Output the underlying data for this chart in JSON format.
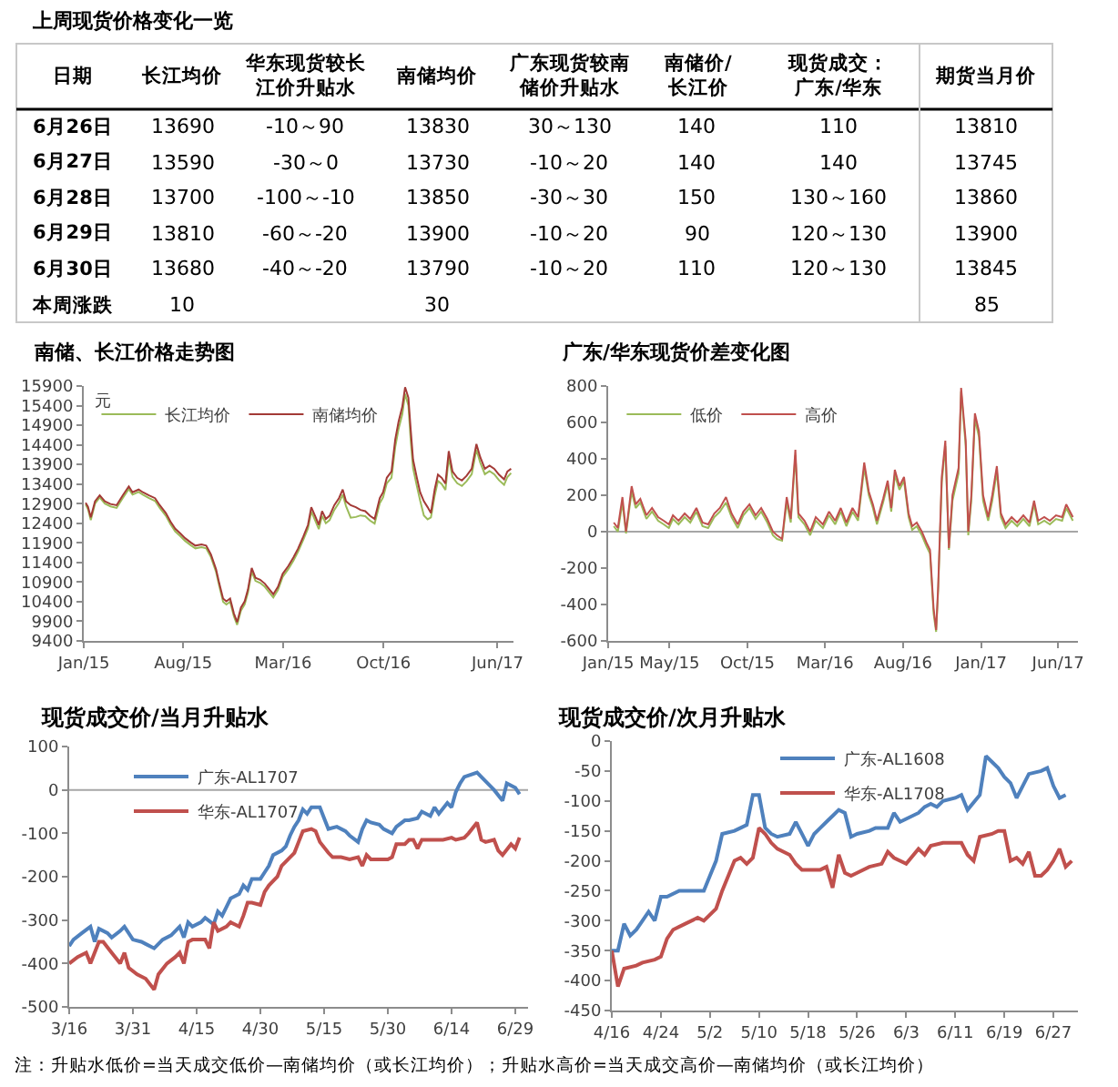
{
  "chart_data": [
    {
      "type": "other",
      "title": "上周现货价格变化一览",
      "categories": [
        "日期",
        "长江均价",
        "华东现货较长江价升贴水",
        "南储均价",
        "广东现货较南储价升贴水",
        "南储价/长江价",
        "现货成交：广东/华东",
        "期货当月价"
      ],
      "y_categories": [
        "6月26日",
        "6月27日",
        "6月28日",
        "6月29日",
        "6月30日",
        "本周涨跌"
      ],
      "cell_labels": [
        [
          "13690",
          "-10～90",
          "13830",
          "30～130",
          "140",
          "110",
          "13810"
        ],
        [
          "13590",
          "-30～0",
          "13730",
          "-10～20",
          "140",
          "140",
          "13745"
        ],
        [
          "13700",
          "-100～-10",
          "13850",
          "-30～30",
          "150",
          "130～160",
          "13860"
        ],
        [
          "13810",
          "-60～-20",
          "13900",
          "-10～20",
          "90",
          "120～130",
          "13900"
        ],
        [
          "13680",
          "-40～-20",
          "13790",
          "-10～20",
          "110",
          "120～130",
          "13845"
        ],
        [
          "10",
          null,
          "30",
          null,
          null,
          null,
          "85"
        ]
      ]
    },
    {
      "type": "line",
      "title": "南储、长江价格走势图",
      "ylabel": "元",
      "xlim": [
        "2015-01-01",
        "2017-07-05"
      ],
      "xticks": [
        {
          "value": "2015-01",
          "label": "Jan/15"
        },
        {
          "value": "2015-08",
          "label": "Aug/15"
        },
        {
          "value": "2016-03",
          "label": "Mar/16"
        },
        {
          "value": "2016-10",
          "label": "Oct/16"
        },
        {
          "value": "2017-06",
          "label": "Jun/17"
        }
      ],
      "ylim": [
        9400,
        15900
      ],
      "yticks": [
        9400,
        9900,
        10400,
        10900,
        11400,
        11900,
        12400,
        12900,
        13400,
        13900,
        14400,
        14900,
        15400,
        15900
      ],
      "legend": "top left",
      "series": [
        {
          "name": "长江均价",
          "color": "#9bbb59",
          "x": [
            "2015-01-05",
            "2015-01-10",
            "2015-01-16",
            "2015-01-25",
            "2015-02-04",
            "2015-02-15",
            "2015-02-27",
            "2015-03-12",
            "2015-03-25",
            "2015-04-07",
            "2015-04-15",
            "2015-04-28",
            "2015-05-07",
            "2015-05-20",
            "2015-06-02",
            "2015-06-12",
            "2015-06-25",
            "2015-07-05",
            "2015-07-15",
            "2015-07-26",
            "2015-08-05",
            "2015-08-17",
            "2015-08-27",
            "2015-09-09",
            "2015-09-19",
            "2015-09-29",
            "2015-10-10",
            "2015-10-17",
            "2015-10-25",
            "2015-11-01",
            "2015-11-09",
            "2015-11-17",
            "2015-11-24",
            "2015-12-02",
            "2015-12-10",
            "2015-12-17",
            "2015-12-25",
            "2016-01-02",
            "2016-01-12",
            "2016-01-22",
            "2016-02-01",
            "2016-02-09",
            "2016-02-19",
            "2016-02-29",
            "2016-03-12",
            "2016-03-23",
            "2016-04-02",
            "2016-04-13",
            "2016-04-23",
            "2016-04-30",
            "2016-05-08",
            "2016-05-16",
            "2016-05-23",
            "2016-05-31",
            "2016-06-08",
            "2016-06-18",
            "2016-06-28",
            "2016-07-06",
            "2016-07-13",
            "2016-07-23",
            "2016-08-03",
            "2016-08-13",
            "2016-08-23",
            "2016-09-02",
            "2016-09-12",
            "2016-09-23",
            "2016-09-30",
            "2016-10-08",
            "2016-10-18",
            "2016-10-26",
            "2016-11-02",
            "2016-11-10",
            "2016-11-16",
            "2016-11-23",
            "2016-11-28",
            "2016-12-03",
            "2016-12-11",
            "2016-12-18",
            "2016-12-26",
            "2017-01-03",
            "2017-01-10",
            "2017-01-18",
            "2017-01-25",
            "2017-02-02",
            "2017-02-10",
            "2017-02-17",
            "2017-02-25",
            "2017-03-07",
            "2017-03-17",
            "2017-03-27",
            "2017-04-07",
            "2017-04-17",
            "2017-04-25",
            "2017-05-05",
            "2017-05-15",
            "2017-05-25",
            "2017-06-04",
            "2017-06-15",
            "2017-06-22",
            "2017-06-30"
          ],
          "values": [
            12880,
            12760,
            12480,
            12900,
            13060,
            12900,
            12830,
            12790,
            13040,
            13270,
            13130,
            13200,
            13130,
            13040,
            12970,
            12790,
            12590,
            12370,
            12190,
            12070,
            11950,
            11840,
            11760,
            11790,
            11760,
            11540,
            11160,
            10790,
            10400,
            10330,
            10400,
            10030,
            9810,
            10170,
            10330,
            10630,
            11170,
            10930,
            10880,
            10780,
            10630,
            10510,
            10700,
            11030,
            11230,
            11450,
            11680,
            11980,
            12270,
            12700,
            12480,
            12250,
            12590,
            12400,
            12480,
            12740,
            12920,
            13130,
            12840,
            12540,
            12560,
            12600,
            12580,
            12470,
            12390,
            12910,
            13060,
            13420,
            13560,
            14350,
            14800,
            15180,
            15700,
            15400,
            14500,
            13800,
            13350,
            12980,
            12600,
            12500,
            12550,
            13100,
            13480,
            13400,
            13250,
            14080,
            13580,
            13420,
            13350,
            13470,
            13650,
            14280,
            13950,
            13650,
            13730,
            13650,
            13500,
            13380,
            13580,
            13680
          ]
        },
        {
          "name": "南储均价",
          "color": "#a33a36",
          "x": [
            "2015-01-05",
            "2015-01-10",
            "2015-01-16",
            "2015-01-25",
            "2015-02-04",
            "2015-02-15",
            "2015-02-27",
            "2015-03-12",
            "2015-03-25",
            "2015-04-07",
            "2015-04-15",
            "2015-04-28",
            "2015-05-07",
            "2015-05-20",
            "2015-06-02",
            "2015-06-12",
            "2015-06-25",
            "2015-07-05",
            "2015-07-15",
            "2015-07-26",
            "2015-08-05",
            "2015-08-17",
            "2015-08-27",
            "2015-09-09",
            "2015-09-19",
            "2015-09-29",
            "2015-10-10",
            "2015-10-17",
            "2015-10-25",
            "2015-11-01",
            "2015-11-09",
            "2015-11-17",
            "2015-11-24",
            "2015-12-02",
            "2015-12-10",
            "2015-12-17",
            "2015-12-25",
            "2016-01-02",
            "2016-01-12",
            "2016-01-22",
            "2016-02-01",
            "2016-02-09",
            "2016-02-19",
            "2016-02-29",
            "2016-03-12",
            "2016-03-23",
            "2016-04-02",
            "2016-04-13",
            "2016-04-23",
            "2016-04-30",
            "2016-05-08",
            "2016-05-16",
            "2016-05-23",
            "2016-05-31",
            "2016-06-08",
            "2016-06-18",
            "2016-06-28",
            "2016-07-06",
            "2016-07-13",
            "2016-07-23",
            "2016-08-03",
            "2016-08-13",
            "2016-08-23",
            "2016-09-02",
            "2016-09-12",
            "2016-09-23",
            "2016-09-30",
            "2016-10-08",
            "2016-10-18",
            "2016-10-26",
            "2016-11-02",
            "2016-11-10",
            "2016-11-16",
            "2016-11-23",
            "2016-11-28",
            "2016-12-03",
            "2016-12-11",
            "2016-12-18",
            "2016-12-26",
            "2017-01-03",
            "2017-01-10",
            "2017-01-18",
            "2017-01-25",
            "2017-02-02",
            "2017-02-10",
            "2017-02-17",
            "2017-02-25",
            "2017-03-07",
            "2017-03-17",
            "2017-03-27",
            "2017-04-07",
            "2017-04-17",
            "2017-04-25",
            "2017-05-05",
            "2017-05-15",
            "2017-05-25",
            "2017-06-04",
            "2017-06-15",
            "2017-06-22",
            "2017-06-30"
          ],
          "values": [
            12920,
            12820,
            12550,
            12960,
            13110,
            12960,
            12890,
            12860,
            13110,
            13340,
            13190,
            13260,
            13190,
            13110,
            13040,
            12860,
            12660,
            12440,
            12260,
            12140,
            12020,
            11910,
            11830,
            11860,
            11830,
            11610,
            11230,
            10860,
            10480,
            10410,
            10480,
            10100,
            9880,
            10250,
            10410,
            10710,
            11260,
            11010,
            10960,
            10860,
            10710,
            10590,
            10780,
            11110,
            11310,
            11530,
            11760,
            12060,
            12360,
            12810,
            12590,
            12360,
            12710,
            12510,
            12590,
            12860,
            13040,
            13260,
            12960,
            12860,
            12810,
            12740,
            12710,
            12590,
            12510,
            13040,
            13190,
            13560,
            13720,
            14540,
            14990,
            15370,
            15870,
            15600,
            14770,
            14020,
            13560,
            13190,
            12960,
            12810,
            12660,
            13260,
            13640,
            13560,
            13410,
            14240,
            13720,
            13560,
            13490,
            13610,
            13790,
            14420,
            14090,
            13790,
            13870,
            13790,
            13640,
            13520,
            13720,
            13790
          ]
        }
      ]
    },
    {
      "type": "line",
      "title": "广东/华东现货价差变化图",
      "xlim": [
        "2015-01-01",
        "2017-07-10"
      ],
      "xticks": [
        {
          "value": "2015-01",
          "label": "Jan/15"
        },
        {
          "value": "2015-05",
          "label": "May/15"
        },
        {
          "value": "2015-10",
          "label": "Oct/15"
        },
        {
          "value": "2016-03",
          "label": "Mar/16"
        },
        {
          "value": "2016-08",
          "label": "Aug/16"
        },
        {
          "value": "2017-01",
          "label": "Jan/17"
        },
        {
          "value": "2017-06",
          "label": "Jun/17"
        }
      ],
      "ylim": [
        -600,
        800
      ],
      "yticks": [
        -600,
        -400,
        -200,
        0,
        200,
        400,
        600,
        800
      ],
      "legend": "top left",
      "ref_lines": [
        {
          "axis": "y",
          "value": 0,
          "color": "#a6a6a6"
        }
      ],
      "series": [
        {
          "name": "低价",
          "color": "#9bbb59",
          "x": [
            "2015-01-12",
            "2015-01-20",
            "2015-01-29",
            "2015-02-05",
            "2015-02-16",
            "2015-02-24",
            "2015-03-05",
            "2015-03-17",
            "2015-03-28",
            "2015-04-09",
            "2015-04-20",
            "2015-04-30",
            "2015-05-08",
            "2015-05-19",
            "2015-05-31",
            "2015-06-11",
            "2015-06-23",
            "2015-07-05",
            "2015-07-16",
            "2015-07-28",
            "2015-08-08",
            "2015-08-20",
            "2015-08-31",
            "2015-09-12",
            "2015-09-23",
            "2015-10-05",
            "2015-10-17",
            "2015-10-28",
            "2015-11-09",
            "2015-11-20",
            "2015-11-28",
            "2015-12-08",
            "2015-12-17",
            "2015-12-25",
            "2016-01-03",
            "2016-01-09",
            "2016-01-21",
            "2016-02-01",
            "2016-02-12",
            "2016-02-26",
            "2016-03-09",
            "2016-03-21",
            "2016-04-01",
            "2016-04-12",
            "2016-04-24",
            "2016-05-05",
            "2016-05-17",
            "2016-05-26",
            "2016-06-03",
            "2016-06-11",
            "2016-06-23",
            "2016-07-02",
            "2016-07-09",
            "2016-07-16",
            "2016-07-25",
            "2016-08-03",
            "2016-08-12",
            "2016-08-19",
            "2016-08-28",
            "2016-09-07",
            "2016-09-16",
            "2016-09-23",
            "2016-09-30",
            "2016-10-05",
            "2016-10-09",
            "2016-10-16",
            "2016-10-23",
            "2016-10-30",
            "2016-11-06",
            "2016-11-18",
            "2016-11-23",
            "2016-12-02",
            "2016-12-07",
            "2016-12-13",
            "2016-12-20",
            "2016-12-28",
            "2017-01-05",
            "2017-01-15",
            "2017-01-23",
            "2017-02-01",
            "2017-02-09",
            "2017-02-18",
            "2017-03-02",
            "2017-03-13",
            "2017-03-25",
            "2017-04-06",
            "2017-04-15",
            "2017-04-23",
            "2017-05-05",
            "2017-05-16",
            "2017-05-28",
            "2017-06-09",
            "2017-06-17",
            "2017-06-30"
          ],
          "values": [
            30,
            0,
            160,
            -10,
            220,
            130,
            160,
            70,
            110,
            60,
            40,
            20,
            70,
            40,
            80,
            50,
            110,
            30,
            20,
            80,
            110,
            160,
            80,
            20,
            90,
            130,
            70,
            110,
            50,
            -20,
            -40,
            -50,
            160,
            50,
            420,
            80,
            40,
            -20,
            60,
            20,
            90,
            40,
            110,
            30,
            110,
            60,
            350,
            200,
            130,
            40,
            160,
            260,
            110,
            310,
            230,
            280,
            80,
            10,
            30,
            -20,
            -80,
            -120,
            -450,
            -550,
            -320,
            270,
            470,
            -100,
            170,
            320,
            770,
            470,
            -20,
            170,
            620,
            520,
            170,
            60,
            170,
            330,
            80,
            20,
            60,
            30,
            70,
            30,
            150,
            40,
            60,
            40,
            70,
            60,
            130,
            60
          ]
        },
        {
          "name": "高价",
          "color": "#c0504d",
          "x": [
            "2015-01-12",
            "2015-01-20",
            "2015-01-29",
            "2015-02-05",
            "2015-02-16",
            "2015-02-24",
            "2015-03-05",
            "2015-03-17",
            "2015-03-28",
            "2015-04-09",
            "2015-04-20",
            "2015-04-30",
            "2015-05-08",
            "2015-05-19",
            "2015-05-31",
            "2015-06-11",
            "2015-06-23",
            "2015-07-05",
            "2015-07-16",
            "2015-07-28",
            "2015-08-08",
            "2015-08-20",
            "2015-08-31",
            "2015-09-12",
            "2015-09-23",
            "2015-10-05",
            "2015-10-17",
            "2015-10-28",
            "2015-11-09",
            "2015-11-20",
            "2015-11-28",
            "2015-12-08",
            "2015-12-17",
            "2015-12-25",
            "2016-01-03",
            "2016-01-09",
            "2016-01-21",
            "2016-02-01",
            "2016-02-12",
            "2016-02-26",
            "2016-03-09",
            "2016-03-21",
            "2016-04-01",
            "2016-04-12",
            "2016-04-24",
            "2016-05-05",
            "2016-05-17",
            "2016-05-26",
            "2016-06-03",
            "2016-06-11",
            "2016-06-23",
            "2016-07-02",
            "2016-07-09",
            "2016-07-16",
            "2016-07-25",
            "2016-08-03",
            "2016-08-12",
            "2016-08-19",
            "2016-08-28",
            "2016-09-07",
            "2016-09-16",
            "2016-09-23",
            "2016-09-30",
            "2016-10-05",
            "2016-10-09",
            "2016-10-16",
            "2016-10-23",
            "2016-10-30",
            "2016-11-06",
            "2016-11-18",
            "2016-11-23",
            "2016-12-02",
            "2016-12-07",
            "2016-12-13",
            "2016-12-20",
            "2016-12-28",
            "2017-01-05",
            "2017-01-15",
            "2017-01-23",
            "2017-02-01",
            "2017-02-09",
            "2017-02-18",
            "2017-03-02",
            "2017-03-13",
            "2017-03-25",
            "2017-04-06",
            "2017-04-15",
            "2017-04-23",
            "2017-05-05",
            "2017-05-16",
            "2017-05-28",
            "2017-06-09",
            "2017-06-17",
            "2017-06-30"
          ],
          "values": [
            50,
            20,
            190,
            0,
            250,
            150,
            180,
            90,
            130,
            80,
            60,
            40,
            90,
            60,
            100,
            70,
            130,
            50,
            40,
            100,
            130,
            190,
            100,
            40,
            110,
            150,
            90,
            130,
            70,
            0,
            -20,
            -40,
            190,
            70,
            450,
            100,
            60,
            0,
            80,
            40,
            110,
            60,
            130,
            50,
            130,
            80,
            380,
            220,
            150,
            60,
            180,
            280,
            130,
            340,
            250,
            300,
            100,
            30,
            50,
            0,
            -60,
            -100,
            -420,
            -540,
            -300,
            300,
            500,
            -90,
            200,
            350,
            790,
            500,
            0,
            200,
            650,
            550,
            200,
            80,
            200,
            360,
            100,
            40,
            80,
            50,
            90,
            50,
            170,
            60,
            80,
            60,
            90,
            80,
            150,
            80
          ]
        }
      ]
    },
    {
      "type": "line",
      "title": "现货成交价/当月升贴水",
      "xlim": [
        "--03-16",
        "--07-02"
      ],
      "xticks": [
        {
          "value": "--03-16",
          "label": "3/16"
        },
        {
          "value": "--03-31",
          "label": "3/31"
        },
        {
          "value": "--04-15",
          "label": "4/15"
        },
        {
          "value": "--04-30",
          "label": "4/30"
        },
        {
          "value": "--05-15",
          "label": "5/15"
        },
        {
          "value": "--05-30",
          "label": "5/30"
        },
        {
          "value": "--06-14",
          "label": "6/14"
        },
        {
          "value": "--06-29",
          "label": "6/29"
        }
      ],
      "ylim": [
        -500,
        100
      ],
      "yticks": [
        -500,
        -400,
        -300,
        -200,
        -100,
        0,
        100
      ],
      "legend": "top",
      "ref_lines": [
        {
          "axis": "y",
          "value": 0,
          "color": "#a6a6a6"
        }
      ],
      "series": [
        {
          "name": "广东-AL1707",
          "color": "#4f81bd",
          "x": [
            "--03-16",
            "--03-17",
            "--03-19",
            "--03-21",
            "--03-22",
            "--03-23",
            "--03-25",
            "--03-26",
            "--03-28",
            "--03-29",
            "--03-31",
            "--04-02",
            "--04-03",
            "--04-05",
            "--04-07",
            "--04-09",
            "--04-10",
            "--04-11",
            "--04-12",
            "--04-13",
            "--04-14",
            "--04-16",
            "--04-17",
            "--04-19",
            "--04-20",
            "--04-21",
            "--04-22",
            "--04-23",
            "--04-25",
            "--04-26",
            "--04-27",
            "--04-28",
            "--04-29",
            "--04-30",
            "--05-01",
            "--05-02",
            "--05-03",
            "--05-05",
            "--05-06",
            "--05-07",
            "--05-08",
            "--05-09",
            "--05-10",
            "--05-11",
            "--05-12",
            "--05-14",
            "--05-15",
            "--05-16",
            "--05-18",
            "--05-20",
            "--05-21",
            "--05-23",
            "--05-24",
            "--05-25",
            "--05-26",
            "--05-28",
            "--05-29",
            "--05-31",
            "--06-01",
            "--06-03",
            "--06-04",
            "--06-06",
            "--06-07",
            "--06-09",
            "--06-10",
            "--06-11",
            "--06-13",
            "--06-14",
            "--06-15",
            "--06-16",
            "--06-17",
            "--06-20",
            "--06-22",
            "--06-24",
            "--06-26",
            "--06-27",
            "--06-29",
            "--06-30"
          ],
          "values": [
            -360,
            -345,
            -330,
            -315,
            -350,
            -320,
            -330,
            -340,
            -325,
            -315,
            -345,
            -350,
            -355,
            -365,
            -345,
            -335,
            -325,
            -315,
            -340,
            -305,
            -315,
            -305,
            -295,
            -310,
            -280,
            -290,
            -270,
            -250,
            -240,
            -220,
            -230,
            -205,
            -205,
            -205,
            -190,
            -175,
            -150,
            -140,
            -130,
            -105,
            -85,
            -70,
            -45,
            -55,
            -40,
            -40,
            -65,
            -90,
            -85,
            -95,
            -105,
            -120,
            -90,
            -70,
            -75,
            -80,
            -90,
            -100,
            -85,
            -70,
            -70,
            -65,
            -50,
            -60,
            -40,
            -55,
            -30,
            -40,
            -5,
            15,
            30,
            40,
            20,
            0,
            -25,
            15,
            5,
            -10
          ]
        },
        {
          "name": "华东-AL1707",
          "color": "#c0504d",
          "x": [
            "--03-16",
            "--03-18",
            "--03-20",
            "--03-21",
            "--03-23",
            "--03-24",
            "--03-26",
            "--03-28",
            "--03-29",
            "--03-30",
            "--04-01",
            "--04-03",
            "--04-05",
            "--04-06",
            "--04-08",
            "--04-10",
            "--04-11",
            "--04-12",
            "--04-13",
            "--04-14",
            "--04-17",
            "--04-18",
            "--04-19",
            "--04-20",
            "--04-22",
            "--04-23",
            "--04-25",
            "--04-26",
            "--04-27",
            "--04-28",
            "--04-30",
            "--05-01",
            "--05-02",
            "--05-04",
            "--05-05",
            "--05-07",
            "--05-08",
            "--05-09",
            "--05-10",
            "--05-12",
            "--05-13",
            "--05-14",
            "--05-16",
            "--05-17",
            "--05-19",
            "--05-21",
            "--05-23",
            "--05-24",
            "--05-25",
            "--05-26",
            "--05-28",
            "--05-30",
            "--05-31",
            "--06-01",
            "--06-03",
            "--06-04",
            "--06-05",
            "--06-06",
            "--06-07",
            "--06-09",
            "--06-11",
            "--06-12",
            "--06-14",
            "--06-15",
            "--06-17",
            "--06-18",
            "--06-20",
            "--06-21",
            "--06-22",
            "--06-24",
            "--06-25",
            "--06-26",
            "--06-28",
            "--06-29",
            "--06-30"
          ],
          "values": [
            -400,
            -385,
            -375,
            -400,
            -350,
            -350,
            -375,
            -400,
            -375,
            -410,
            -425,
            -435,
            -460,
            -425,
            -400,
            -385,
            -375,
            -400,
            -350,
            -345,
            -345,
            -365,
            -305,
            -325,
            -315,
            -305,
            -315,
            -290,
            -260,
            -260,
            -265,
            -235,
            -220,
            -200,
            -175,
            -155,
            -145,
            -120,
            -95,
            -90,
            -95,
            -120,
            -145,
            -155,
            -155,
            -160,
            -155,
            -175,
            -150,
            -160,
            -160,
            -160,
            -155,
            -125,
            -125,
            -115,
            -115,
            -135,
            -115,
            -115,
            -115,
            -115,
            -110,
            -115,
            -110,
            -100,
            -75,
            -115,
            -120,
            -115,
            -140,
            -150,
            -125,
            -135,
            -110
          ]
        }
      ]
    },
    {
      "type": "line",
      "title": "现货成交价/次月升贴水",
      "xlim": [
        "--04-16",
        "--07-01"
      ],
      "xticks": [
        {
          "value": "--04-16",
          "label": "4/16"
        },
        {
          "value": "--04-24",
          "label": "4/24"
        },
        {
          "value": "--05-02",
          "label": "5/2"
        },
        {
          "value": "--05-10",
          "label": "5/10"
        },
        {
          "value": "--05-18",
          "label": "5/18"
        },
        {
          "value": "--05-26",
          "label": "5/26"
        },
        {
          "value": "--06-03",
          "label": "6/3"
        },
        {
          "value": "--06-11",
          "label": "6/11"
        },
        {
          "value": "--06-19",
          "label": "6/19"
        },
        {
          "value": "--06-27",
          "label": "6/27"
        }
      ],
      "ylim": [
        -450,
        0
      ],
      "yticks": [
        -450,
        -400,
        -350,
        -300,
        -250,
        -200,
        -150,
        -100,
        -50,
        0
      ],
      "legend": "top",
      "series": [
        {
          "name": "广东-AL1608",
          "color": "#4f81bd",
          "x": [
            "--04-16",
            "--04-17",
            "--04-18",
            "--04-19",
            "--04-20",
            "--04-21",
            "--04-22",
            "--04-23",
            "--04-24",
            "--04-25",
            "--04-27",
            "--04-28",
            "--04-30",
            "--05-01",
            "--05-02",
            "--05-03",
            "--05-04",
            "--05-06",
            "--05-07",
            "--05-08",
            "--05-09",
            "--05-10",
            "--05-11",
            "--05-12",
            "--05-13",
            "--05-15",
            "--05-16",
            "--05-17",
            "--05-18",
            "--05-19",
            "--05-20",
            "--05-21",
            "--05-22",
            "--05-23",
            "--05-24",
            "--05-25",
            "--05-26",
            "--05-28",
            "--05-29",
            "--05-31",
            "--06-01",
            "--06-02",
            "--06-03",
            "--06-05",
            "--06-06",
            "--06-07",
            "--06-08",
            "--06-09",
            "--06-11",
            "--06-12",
            "--06-13",
            "--06-15",
            "--06-16",
            "--06-17",
            "--06-18",
            "--06-19",
            "--06-20",
            "--06-21",
            "--06-22",
            "--06-23",
            "--06-25",
            "--06-26",
            "--06-27",
            "--06-28",
            "--06-29"
          ],
          "values": [
            -350,
            -350,
            -305,
            -325,
            -315,
            -300,
            -285,
            -300,
            -260,
            -260,
            -250,
            -250,
            -250,
            -250,
            -225,
            -200,
            -155,
            -150,
            -145,
            -140,
            -90,
            -90,
            -145,
            -155,
            -160,
            -155,
            -135,
            -155,
            -175,
            -155,
            -145,
            -135,
            -125,
            -115,
            -120,
            -160,
            -155,
            -150,
            -145,
            -145,
            -120,
            -135,
            -130,
            -120,
            -110,
            -105,
            -110,
            -100,
            -95,
            -90,
            -115,
            -90,
            -25,
            -35,
            -45,
            -60,
            -70,
            -95,
            -75,
            -55,
            -50,
            -45,
            -75,
            -95,
            -90
          ]
        },
        {
          "name": "华东-AL1708",
          "color": "#c0504d",
          "x": [
            "--04-16",
            "--04-17",
            "--04-18",
            "--04-20",
            "--04-21",
            "--04-23",
            "--04-24",
            "--04-25",
            "--04-26",
            "--04-28",
            "--04-30",
            "--05-01",
            "--05-03",
            "--05-04",
            "--05-05",
            "--05-06",
            "--05-07",
            "--05-08",
            "--05-09",
            "--05-10",
            "--05-11",
            "--05-12",
            "--05-13",
            "--05-15",
            "--05-16",
            "--05-17",
            "--05-19",
            "--05-20",
            "--05-21",
            "--05-22",
            "--05-23",
            "--05-24",
            "--05-25",
            "--05-26",
            "--05-28",
            "--05-30",
            "--05-31",
            "--06-01",
            "--06-03",
            "--06-05",
            "--06-06",
            "--06-07",
            "--06-09",
            "--06-11",
            "--06-12",
            "--06-13",
            "--06-14",
            "--06-15",
            "--06-17",
            "--06-18",
            "--06-19",
            "--06-20",
            "--06-21",
            "--06-22",
            "--06-23",
            "--06-24",
            "--06-25",
            "--06-26",
            "--06-27",
            "--06-28",
            "--06-29",
            "--06-30"
          ],
          "values": [
            -350,
            -410,
            -380,
            -375,
            -370,
            -365,
            -360,
            -330,
            -315,
            -305,
            -295,
            -300,
            -280,
            -250,
            -225,
            -200,
            -195,
            -205,
            -195,
            -145,
            -155,
            -170,
            -180,
            -190,
            -205,
            -215,
            -215,
            -215,
            -210,
            -245,
            -190,
            -220,
            -225,
            -220,
            -210,
            -205,
            -185,
            -195,
            -205,
            -180,
            -190,
            -175,
            -170,
            -170,
            -170,
            -190,
            -200,
            -160,
            -155,
            -150,
            -150,
            -200,
            -195,
            -205,
            -185,
            -225,
            -225,
            -215,
            -200,
            -180,
            -210,
            -200
          ]
        }
      ],
      "annotations": [
        "注：升贴水低价=当天成交低价—南储均价（或长江均价）；升贴水高价=当天成交高价—南储均价（或长江均价）"
      ]
    }
  ]
}
